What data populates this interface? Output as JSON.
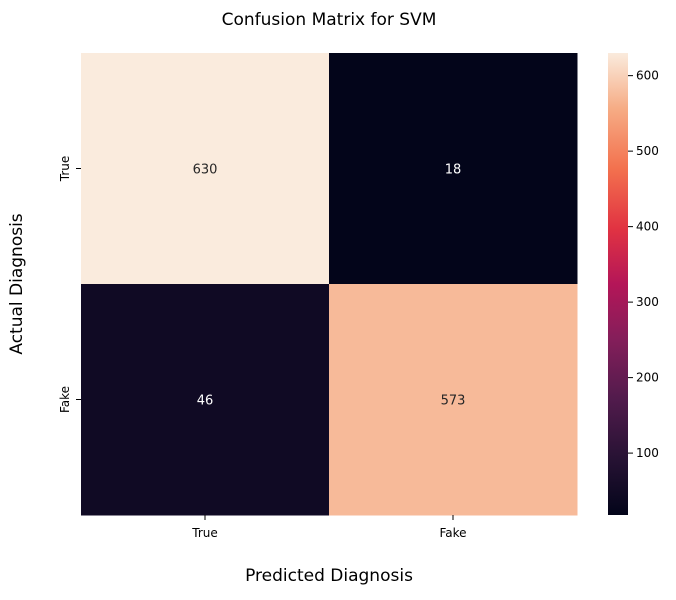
{
  "chart_data": {
    "type": "heatmap",
    "title": "Confusion Matrix for SVM",
    "xlabel": "Predicted Diagnosis",
    "ylabel": "Actual Diagnosis",
    "x_categories": [
      "True",
      "Fake"
    ],
    "y_categories": [
      "True",
      "Fake"
    ],
    "values": [
      [
        630,
        18
      ],
      [
        46,
        573
      ]
    ],
    "colorbar": {
      "colormap": "rocket",
      "vmin": 18,
      "vmax": 630,
      "ticks": [
        100,
        200,
        300,
        400,
        500,
        600
      ]
    },
    "grid": false
  }
}
